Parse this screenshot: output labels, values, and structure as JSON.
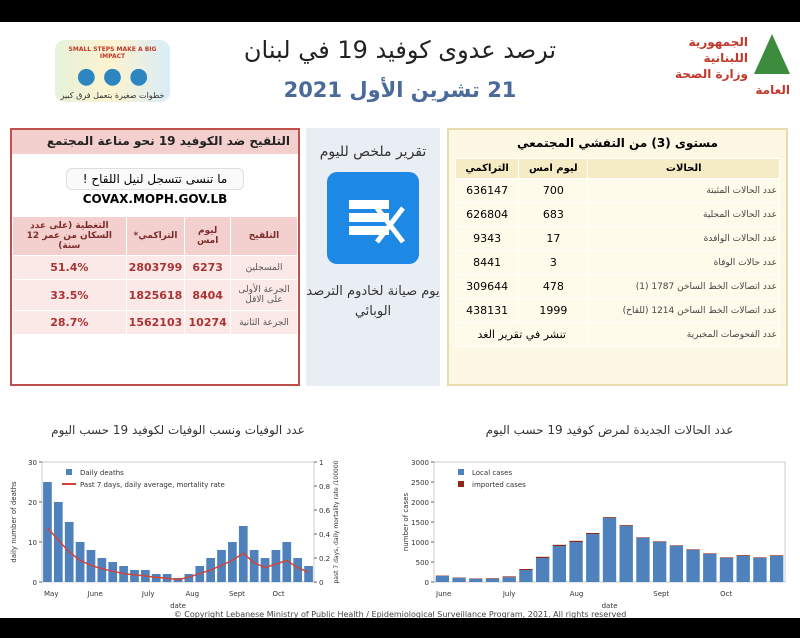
{
  "header": {
    "ministry": "الجمهورية اللبنانية",
    "ministry_sub": "وزارة الصحة العامة",
    "title": "ترصد عدوى كوفيد 19 في لبنان",
    "date": "21 تشرين الأول 2021",
    "campaign": "SMALL STEPS MAKE A BIG IMPACT",
    "campaign_ar": "خطوات صغيرة بتعمل فرق كبير"
  },
  "vaccination": {
    "title": "التلقيح ضد الكوفيد 19  نحو مناعة المجتمع",
    "reminder": "ما تنسى تتسجل لنيل اللقاح !",
    "url": "COVAX.MOPH.GOV.LB",
    "columns": [
      "التلقيح",
      "ليوم امس",
      "التراكمي*",
      "التغطية (على عدد السكان من عمر 12 سنة)"
    ],
    "rows": [
      [
        "المسجلين",
        6273,
        2803799,
        "51.4%"
      ],
      [
        "الجرعة الأولى على الاقل",
        8404,
        1825618,
        "33.5%"
      ],
      [
        "الجرعة الثانية",
        10274,
        1562103,
        "28.7%"
      ]
    ]
  },
  "summary": {
    "title": "تقرير ملخص لليوم",
    "notice": "يوم صيانة لخادوم الترصد الوبائي"
  },
  "cases": {
    "title": "مستوى (3) من التفشي المجتمعي",
    "columns": [
      "الحالات",
      "ليوم امس",
      "التراكمي"
    ],
    "rows": [
      [
        "عدد الحالات المثبتة",
        700,
        636147
      ],
      [
        "عدد الحالات المحلية",
        683,
        626804
      ],
      [
        "عدد الحالات الوافدة",
        17,
        9343
      ],
      [
        "عدد حالات الوفاة",
        3,
        8441
      ],
      [
        "عدد اتصالات الخط الساخن 1787  (1)",
        478,
        309644
      ],
      [
        "عدد اتصالات الخط الساخن 1214 (للقاح)",
        1999,
        438131
      ]
    ],
    "last_row": [
      "عدد الفحوصات المخبرية",
      "تنشر في تقرير الغد"
    ]
  },
  "chart_data": [
    {
      "type": "bar",
      "title": "عدد الوفيات ونسب الوفيات لكوفيد 19 حسب اليوم",
      "categories": [
        "May",
        null,
        null,
        null,
        "June",
        null,
        null,
        null,
        null,
        "July",
        null,
        null,
        null,
        "Aug",
        null,
        null,
        null,
        "Sept",
        null,
        null,
        null,
        "Oct",
        null,
        null,
        null
      ],
      "series": [
        {
          "name": "Daily deaths",
          "color": "#4f81bd",
          "values": [
            25,
            20,
            15,
            10,
            8,
            6,
            5,
            4,
            3,
            3,
            2,
            2,
            1,
            2,
            4,
            6,
            8,
            10,
            14,
            8,
            6,
            8,
            10,
            6,
            4
          ]
        },
        {
          "name": "Past 7 days, daily average, mortality rate",
          "color": "#d0443a",
          "type": "line",
          "axis": "y2",
          "values": [
            0.45,
            0.35,
            0.25,
            0.18,
            0.14,
            0.11,
            0.09,
            0.07,
            0.06,
            0.05,
            0.04,
            0.03,
            0.02,
            0.04,
            0.07,
            0.1,
            0.14,
            0.18,
            0.24,
            0.16,
            0.12,
            0.15,
            0.18,
            0.12,
            0.08
          ]
        }
      ],
      "xlabel": "date",
      "ylabel": "daily number of deaths",
      "y2label": "past 7 days, daily mortality rate /100000",
      "ylim": [
        0,
        30
      ],
      "yticks": [
        0,
        10,
        20,
        30
      ],
      "y2lim": [
        0,
        1
      ],
      "y2ticks": [
        0,
        0.2,
        0.4,
        0.6,
        0.8,
        1
      ],
      "legend": "top"
    },
    {
      "type": "stacked_bar",
      "title": "عدد الحالات الجديدة لمرض كوفيد 19 حسب اليوم",
      "categories": [
        "June",
        null,
        null,
        null,
        "July",
        null,
        null,
        null,
        "Aug",
        null,
        null,
        null,
        null,
        "Sept",
        null,
        null,
        null,
        "Oct",
        null,
        null,
        null
      ],
      "series": [
        {
          "name": "Local cases",
          "color": "#4f81bd",
          "values": [
            150,
            100,
            80,
            80,
            120,
            300,
            600,
            900,
            1000,
            1200,
            1600,
            1400,
            1100,
            1000,
            900,
            800,
            700,
            600,
            650,
            600,
            650
          ]
        },
        {
          "name": "imported cases",
          "color": "#8b2a1a",
          "values": [
            10,
            10,
            10,
            15,
            20,
            25,
            30,
            30,
            30,
            25,
            20,
            20,
            15,
            15,
            15,
            15,
            15,
            15,
            20,
            15,
            17
          ]
        }
      ],
      "xlabel": "date",
      "ylabel": "number of cases",
      "ylim": [
        0,
        3000
      ],
      "yticks": [
        0,
        500,
        1000,
        1500,
        2000,
        2500,
        3000
      ],
      "legend": "top"
    }
  ],
  "footer": "© Copyright Lebanese Ministry of Public Health / Epidemiological Surveillance Program, 2021. All rights reserved"
}
